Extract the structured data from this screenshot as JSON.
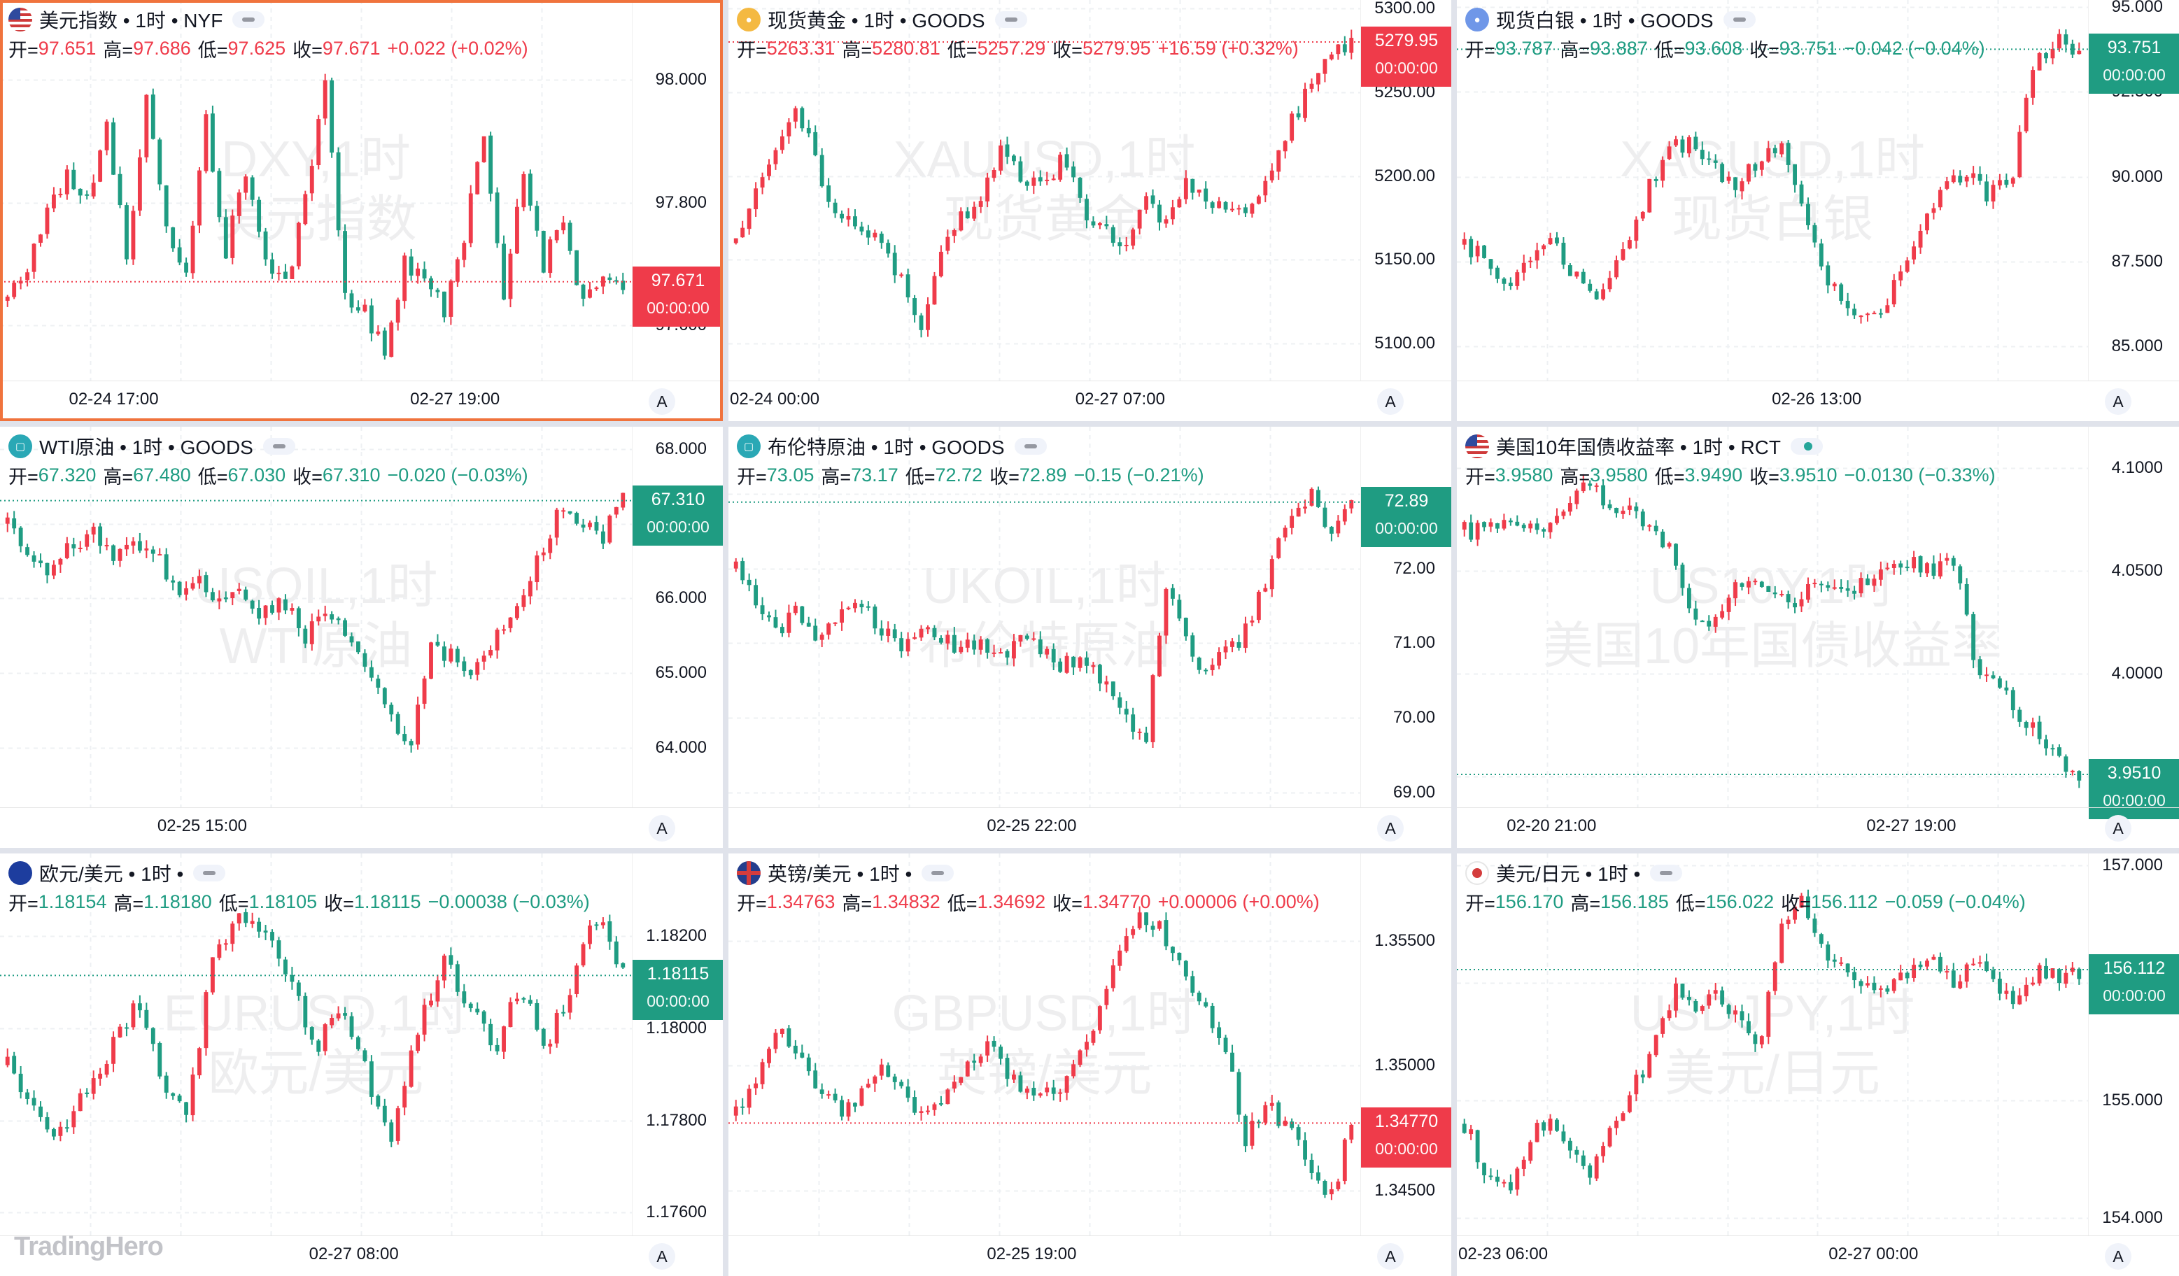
{
  "colors": {
    "up": "#ef3b4a",
    "down": "#1f9c82",
    "active_border": "#f0733d",
    "grid": "#f2f3f5"
  },
  "brand": "TradingHero",
  "legend_labels": {
    "open": "开=",
    "high": "高=",
    "low": "低=",
    "close": "收="
  },
  "axis_auto_label": "A",
  "panels": [
    {
      "title": "美元指数 • 1时 • NYF",
      "icon": "us-flag-icon",
      "pill": "pill",
      "active": true,
      "watermark": [
        "DXY,1时",
        "美元指数"
      ],
      "ohlc": {
        "open": "97.651",
        "high": "97.686",
        "low": "97.625",
        "close": "97.671",
        "change": "+0.022 (+0.02%)",
        "direction": "up"
      },
      "last_price": "97.671",
      "countdown": "00:00:00",
      "price_ticks": [
        "98.000",
        "97.800",
        "97.600"
      ],
      "time_labels": [
        "02-24 17:00",
        "02-27 19:00"
      ],
      "chart_data": {
        "type": "candlestick",
        "ylim": [
          97.51,
          98.13
        ],
        "ticks": [
          98.0,
          97.8,
          97.6
        ],
        "last": 97.671,
        "path": [
          97.64,
          97.7,
          97.78,
          97.85,
          97.8,
          97.93,
          97.72,
          97.96,
          97.76,
          97.68,
          97.93,
          97.72,
          97.85,
          97.7,
          97.66,
          97.8,
          97.99,
          97.65,
          97.62,
          97.56,
          97.7,
          97.68,
          97.62,
          97.74,
          97.92,
          97.65,
          97.86,
          97.7,
          97.78,
          97.63,
          97.68,
          97.67
        ]
      }
    },
    {
      "title": "现货黄金 • 1时 • GOODS",
      "icon": "gold-coin-icon",
      "pill": "pill",
      "active": false,
      "watermark": [
        "XAUUSD,1时",
        "现货黄金"
      ],
      "ohlc": {
        "open": "5263.31",
        "high": "5280.81",
        "low": "5257.29",
        "close": "5279.95",
        "change": "+16.59 (+0.32%)",
        "direction": "up"
      },
      "last_price": "5279.95",
      "countdown": "00:00:00",
      "price_ticks": [
        "5300.00",
        "5250.00",
        "5200.00",
        "5150.00",
        "5100.00"
      ],
      "time_labels": [
        "02-24 00:00",
        "02-27 07:00"
      ],
      "chart_data": {
        "type": "candlestick",
        "ylim": [
          5078,
          5305
        ],
        "ticks": [
          5300,
          5250,
          5200,
          5150,
          5100
        ],
        "last": 5279.95,
        "path": [
          5160,
          5190,
          5220,
          5240,
          5205,
          5175,
          5172,
          5160,
          5140,
          5110,
          5150,
          5175,
          5190,
          5215,
          5200,
          5195,
          5210,
          5180,
          5168,
          5155,
          5185,
          5170,
          5195,
          5185,
          5180,
          5175,
          5200,
          5230,
          5255,
          5270,
          5280
        ]
      }
    },
    {
      "title": "现货白银 • 1时 • GOODS",
      "icon": "silver-coin-icon",
      "pill": "pill",
      "active": false,
      "watermark": [
        "XAGUSD,1时",
        "现货白银"
      ],
      "ohlc": {
        "open": "93.787",
        "high": "93.887",
        "low": "93.608",
        "close": "93.751",
        "change": "−0.042 (−0.04%)",
        "direction": "down"
      },
      "last_price": "93.751",
      "countdown": "00:00:00",
      "price_ticks": [
        "95.000",
        "92.500",
        "90.000",
        "87.500",
        "85.000"
      ],
      "time_labels": [
        "02-26 13:00"
      ],
      "chart_data": {
        "type": "candlestick",
        "ylim": [
          84.0,
          95.2
        ],
        "ticks": [
          95.0,
          92.5,
          90.0,
          87.5,
          85.0
        ],
        "last": 93.751,
        "path": [
          88.0,
          87.5,
          86.5,
          87.8,
          88.0,
          87.0,
          86.5,
          87.8,
          89.5,
          90.8,
          91.0,
          90.2,
          89.8,
          90.5,
          91.0,
          88.5,
          87.0,
          86.0,
          85.8,
          87.0,
          88.5,
          89.8,
          90.2,
          89.5,
          89.9,
          93.2,
          94.0,
          93.8
        ]
      }
    },
    {
      "title": "WTI原油 • 1时 • GOODS",
      "icon": "oil-icon",
      "pill": "pill",
      "active": false,
      "watermark": [
        "USOIL,1时",
        "WTI原油"
      ],
      "ohlc": {
        "open": "67.320",
        "high": "67.480",
        "low": "67.030",
        "close": "67.310",
        "change": "−0.020 (−0.03%)",
        "direction": "down"
      },
      "last_price": "67.310",
      "countdown": "00:00:00",
      "price_ticks": [
        "68.000",
        "67.000",
        "66.000",
        "65.000",
        "64.000"
      ],
      "time_labels": [
        "02-25 15:00"
      ],
      "chart_data": {
        "type": "candlestick",
        "ylim": [
          63.2,
          68.3
        ],
        "ticks": [
          68.0,
          67.0,
          66.0,
          65.0,
          64.0
        ],
        "last": 67.31,
        "path": [
          67.0,
          66.6,
          66.4,
          66.7,
          66.9,
          66.5,
          66.8,
          66.6,
          66.0,
          66.2,
          65.9,
          66.1,
          65.8,
          66.0,
          65.5,
          65.7,
          65.6,
          65.0,
          64.5,
          64.0,
          65.4,
          65.2,
          65.0,
          65.5,
          65.8,
          66.5,
          67.2,
          67.0,
          66.8,
          67.3
        ]
      }
    },
    {
      "title": "布伦特原油 • 1时 • GOODS",
      "icon": "oil-icon",
      "pill": "pill",
      "active": false,
      "watermark": [
        "UKOIL,1时",
        "布伦特原油"
      ],
      "ohlc": {
        "open": "73.05",
        "high": "73.17",
        "low": "72.72",
        "close": "72.89",
        "change": "−0.15 (−0.21%)",
        "direction": "down"
      },
      "last_price": "72.89",
      "countdown": "00:00:00",
      "price_ticks": [
        "72.00",
        "71.00",
        "70.00",
        "69.00"
      ],
      "time_labels": [
        "02-25 22:00"
      ],
      "chart_data": {
        "type": "candlestick",
        "ylim": [
          68.8,
          73.9
        ],
        "ticks": [
          73.0,
          72.0,
          71.0,
          70.0,
          69.0
        ],
        "last": 72.89,
        "path": [
          72.0,
          71.6,
          71.2,
          71.4,
          71.0,
          71.3,
          71.5,
          71.2,
          70.9,
          71.2,
          71.1,
          70.9,
          71.0,
          70.8,
          71.1,
          70.9,
          70.7,
          70.8,
          70.5,
          70.0,
          69.8,
          71.8,
          71.0,
          70.6,
          70.9,
          71.2,
          72.0,
          72.7,
          73.0,
          72.5,
          72.9
        ]
      }
    },
    {
      "title": "美国10年国债收益率 • 1时 • RCT",
      "icon": "us-flag-icon",
      "pill": "live",
      "active": false,
      "watermark": [
        "US10Y,1时",
        "美国10年国债收益率"
      ],
      "ohlc": {
        "open": "3.9580",
        "high": "3.9580",
        "low": "3.9490",
        "close": "3.9510",
        "change": "−0.0130 (−0.33%)",
        "direction": "down"
      },
      "last_price": "3.9510",
      "countdown": "00:00:00",
      "price_ticks": [
        "4.1000",
        "4.0500",
        "4.0000"
      ],
      "time_labels": [
        "02-20 21:00",
        "02-27 19:00"
      ],
      "chart_data": {
        "type": "candlestick",
        "ylim": [
          3.935,
          4.12
        ],
        "ticks": [
          4.1,
          4.05,
          4.0,
          3.95
        ],
        "last": 3.951,
        "path": [
          4.07,
          4.068,
          4.072,
          4.075,
          4.07,
          4.082,
          4.09,
          4.085,
          4.078,
          4.075,
          4.06,
          4.03,
          4.025,
          4.04,
          4.045,
          4.04,
          4.035,
          4.04,
          4.042,
          4.04,
          4.05,
          4.055,
          4.053,
          4.05,
          4.058,
          4.002,
          4.0,
          3.98,
          3.97,
          3.96,
          3.951
        ]
      }
    },
    {
      "title": "欧元/美元 • 1时 •",
      "icon": "eu-flag-icon",
      "pill": "pill",
      "active": false,
      "watermark": [
        "EURUSD,1时",
        "欧元/美元"
      ],
      "ohlc": {
        "open": "1.18154",
        "high": "1.18180",
        "low": "1.18105",
        "close": "1.18115",
        "change": "−0.00038 (−0.03%)",
        "direction": "down"
      },
      "last_price": "1.18115",
      "countdown": "00:00:00",
      "price_ticks": [
        "1.18200",
        "1.18000",
        "1.17800",
        "1.17600"
      ],
      "time_labels": [
        "02-27 08:00"
      ],
      "chart_data": {
        "type": "candlestick",
        "ylim": [
          1.1755,
          1.1838
        ],
        "ticks": [
          1.182,
          1.18,
          1.178,
          1.176
        ],
        "last": 1.18115,
        "path": [
          1.1792,
          1.1782,
          1.1777,
          1.1786,
          1.1795,
          1.1805,
          1.179,
          1.178,
          1.1815,
          1.1825,
          1.182,
          1.1812,
          1.1795,
          1.1805,
          1.179,
          1.1775,
          1.18,
          1.1815,
          1.1805,
          1.1795,
          1.181,
          1.1795,
          1.181,
          1.1825,
          1.1812
        ]
      }
    },
    {
      "title": "英镑/美元 • 1时 •",
      "icon": "uk-flag-icon",
      "pill": "pill",
      "active": false,
      "watermark": [
        "GBPUSD,1时",
        "英镑/美元"
      ],
      "ohlc": {
        "open": "1.34763",
        "high": "1.34832",
        "low": "1.34692",
        "close": "1.34770",
        "change": "+0.00006 (+0.00%)",
        "direction": "up"
      },
      "last_price": "1.34770",
      "countdown": "00:00:00",
      "price_ticks": [
        "1.35500",
        "1.35000",
        "1.34500"
      ],
      "time_labels": [
        "02-25 19:00"
      ],
      "chart_data": {
        "type": "candlestick",
        "ylim": [
          1.3432,
          1.3585
        ],
        "ticks": [
          1.355,
          1.35,
          1.345
        ],
        "last": 1.3477,
        "path": [
          1.348,
          1.3495,
          1.3515,
          1.3505,
          1.349,
          1.348,
          1.3488,
          1.35,
          1.3485,
          1.3478,
          1.349,
          1.35,
          1.351,
          1.3495,
          1.3485,
          1.349,
          1.35,
          1.352,
          1.3545,
          1.356,
          1.3555,
          1.354,
          1.3525,
          1.351,
          1.347,
          1.3485,
          1.3475,
          1.346,
          1.3445,
          1.3477
        ]
      }
    },
    {
      "title": "美元/日元 • 1时 •",
      "icon": "jp-flag-icon",
      "pill": "pill",
      "active": false,
      "watermark": [
        "USDJPY,1时",
        "美元/日元"
      ],
      "ohlc": {
        "open": "156.170",
        "high": "156.185",
        "low": "156.022",
        "close": "156.112",
        "change": "−0.059 (−0.04%)",
        "direction": "down"
      },
      "last_price": "156.112",
      "countdown": "00:00:00",
      "price_ticks": [
        "157.000",
        "156.000",
        "155.000",
        "154.000"
      ],
      "time_labels": [
        "02-23 06:00",
        "02-27 00:00"
      ],
      "chart_data": {
        "type": "candlestick",
        "ylim": [
          153.85,
          157.1
        ],
        "ticks": [
          157.0,
          156.0,
          155.0,
          154.0
        ],
        "last": 156.112,
        "path": [
          154.8,
          154.4,
          154.2,
          154.6,
          154.9,
          154.5,
          154.4,
          154.8,
          155.1,
          155.5,
          156.0,
          155.8,
          155.9,
          155.7,
          155.5,
          156.5,
          156.7,
          156.3,
          156.1,
          156.0,
          155.9,
          156.1,
          156.3,
          155.95,
          156.2,
          156.0,
          155.8,
          156.1,
          156.05,
          156.11
        ]
      }
    }
  ]
}
